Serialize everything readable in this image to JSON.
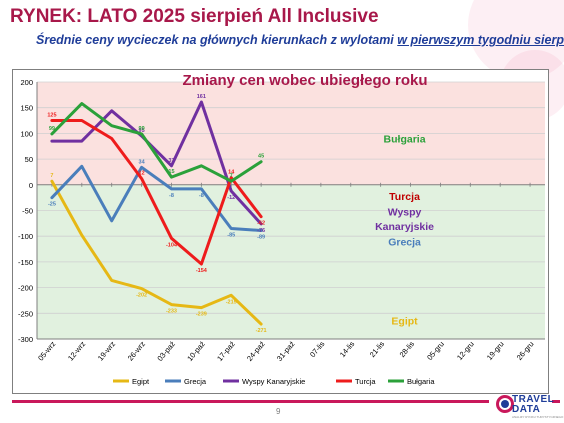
{
  "header": {
    "title": "RYNEK: LATO 2025 sierpień All Inclusive",
    "subtitle_prefix": "Średnie ceny wycieczek na głównych kierunkach z wylotami ",
    "subtitle_underlined": "w pierwszym tygodniu sierpnia"
  },
  "footer": {
    "page_number": "9",
    "logo_top": "TRAVEL",
    "logo_bottom": "DATA",
    "logo_tagline": "ANALIZY RYNKU TURYSTYCZNEGO"
  },
  "colors": {
    "title": "#a8184a",
    "subtitle": "#1f3d99",
    "positive_zone": "#fbe1df",
    "negative_zone": "#e1f1df",
    "accent_bar": "#c9185b"
  },
  "chart_data": {
    "type": "line",
    "title": "Zmiany cen wobec ubiegłego roku",
    "categories": [
      "05-wrz",
      "12-wrz",
      "19-wrz",
      "26-wrz",
      "03-paź",
      "10-paź",
      "17-paź",
      "24-paź",
      "31-paź",
      "07-lis",
      "14-lis",
      "21-lis",
      "28-lis",
      "05-gru",
      "12-gru",
      "19-gru",
      "26-gru"
    ],
    "ylim": [
      -300,
      200
    ],
    "yticks": [
      200,
      150,
      100,
      50,
      0,
      -50,
      -100,
      -150,
      -200,
      -250,
      -300
    ],
    "grid": "horizontal",
    "legend_position": "bottom",
    "background_zones": [
      "positive-pink",
      "negative-green"
    ],
    "series": [
      {
        "name": "Egipt",
        "color": "#e6b815",
        "values": [
          7,
          -98,
          -186,
          -202,
          -233,
          -239,
          -215,
          -271,
          null,
          null,
          null,
          null,
          null,
          null,
          null,
          null,
          null
        ],
        "labels": [
          {
            "i": 0,
            "text": "7"
          },
          {
            "i": 3,
            "text": "-202"
          },
          {
            "i": 4,
            "text": "-233"
          },
          {
            "i": 5,
            "text": "-239"
          },
          {
            "i": 6,
            "text": "-215"
          },
          {
            "i": 7,
            "text": "-271"
          }
        ]
      },
      {
        "name": "Grecja",
        "color": "#4a7ebb",
        "values": [
          -25,
          36,
          -70,
          34,
          -8,
          -8,
          -85,
          -89,
          null,
          null,
          null,
          null,
          null,
          null,
          null,
          null,
          null
        ],
        "labels": [
          {
            "i": 0,
            "text": "-25"
          },
          {
            "i": 3,
            "text": "34"
          },
          {
            "i": 4,
            "text": "-8"
          },
          {
            "i": 5,
            "text": "-8"
          },
          {
            "i": 6,
            "text": "-85"
          },
          {
            "i": 7,
            "text": "-89"
          }
        ]
      },
      {
        "name": "Wyspy Kanaryjskie",
        "color": "#7030a0",
        "values": [
          85,
          85,
          144,
          95,
          37,
          161,
          -12,
          -76,
          null,
          null,
          null,
          null,
          null,
          null,
          null,
          null,
          null
        ],
        "labels": [
          {
            "i": 3,
            "text": "95"
          },
          {
            "i": 4,
            "text": "37"
          },
          {
            "i": 5,
            "text": "161"
          },
          {
            "i": 6,
            "text": "-12"
          },
          {
            "i": 7,
            "text": "-76"
          }
        ]
      },
      {
        "name": "Turcja",
        "color": "#ee1c1c",
        "values": [
          125,
          125,
          90,
          12,
          -104,
          -154,
          14,
          -62,
          null,
          null,
          null,
          null,
          null,
          null,
          null,
          null,
          null
        ],
        "labels": [
          {
            "i": 0,
            "text": "125"
          },
          {
            "i": 3,
            "text": "12"
          },
          {
            "i": 4,
            "text": "-104"
          },
          {
            "i": 5,
            "text": "-154"
          },
          {
            "i": 6,
            "text": "14"
          },
          {
            "i": 7,
            "text": "-62"
          }
        ]
      },
      {
        "name": "Bułgaria",
        "color": "#2ba13a",
        "values": [
          99,
          158,
          115,
          99,
          15,
          37,
          7,
          45,
          null,
          null,
          null,
          null,
          null,
          null,
          null,
          null,
          null
        ],
        "labels": [
          {
            "i": 0,
            "text": "99"
          },
          {
            "i": 3,
            "text": "99"
          },
          {
            "i": 4,
            "text": "15"
          },
          {
            "i": 6,
            "text": "7"
          },
          {
            "i": 7,
            "text": "45"
          }
        ]
      }
    ],
    "annotations": [
      {
        "text": "Bułgaria",
        "color": "#2ba13a",
        "x_index": 12.3,
        "y": 82
      },
      {
        "text": "Turcja",
        "color": "#c00000",
        "x_index": 12.3,
        "y": -30
      },
      {
        "text": "Wyspy",
        "color": "#7030a0",
        "x_index": 12.3,
        "y": -60
      },
      {
        "text": "Kanaryjskie",
        "color": "#7030a0",
        "x_index": 12.3,
        "y": -88
      },
      {
        "text": "Grecja",
        "color": "#4a7ebb",
        "x_index": 12.3,
        "y": -118
      },
      {
        "text": "Egipt",
        "color": "#e6b815",
        "x_index": 12.3,
        "y": -272
      }
    ]
  }
}
